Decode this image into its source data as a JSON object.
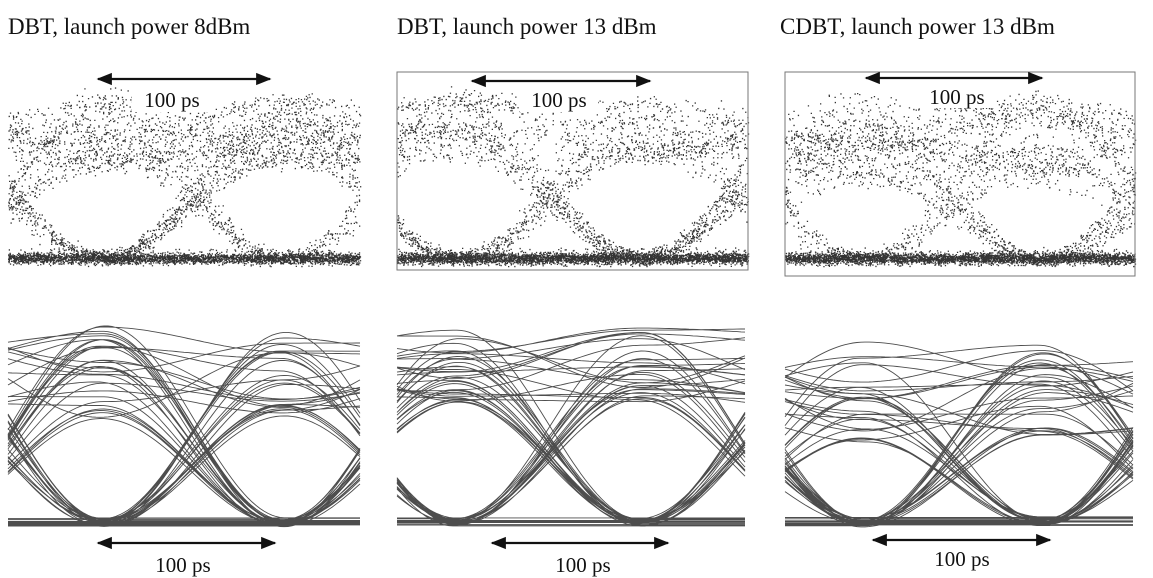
{
  "panels": [
    {
      "title": "DBT, launch power 8dBm",
      "top_label": "100 ps",
      "bottom_label": "100 ps"
    },
    {
      "title": "DBT, launch power 13 dBm",
      "top_label": "100 ps",
      "bottom_label": "100 ps"
    },
    {
      "title": "CDBT, launch power 13 dBm",
      "top_label": "100 ps",
      "bottom_label": "100 ps"
    }
  ]
}
